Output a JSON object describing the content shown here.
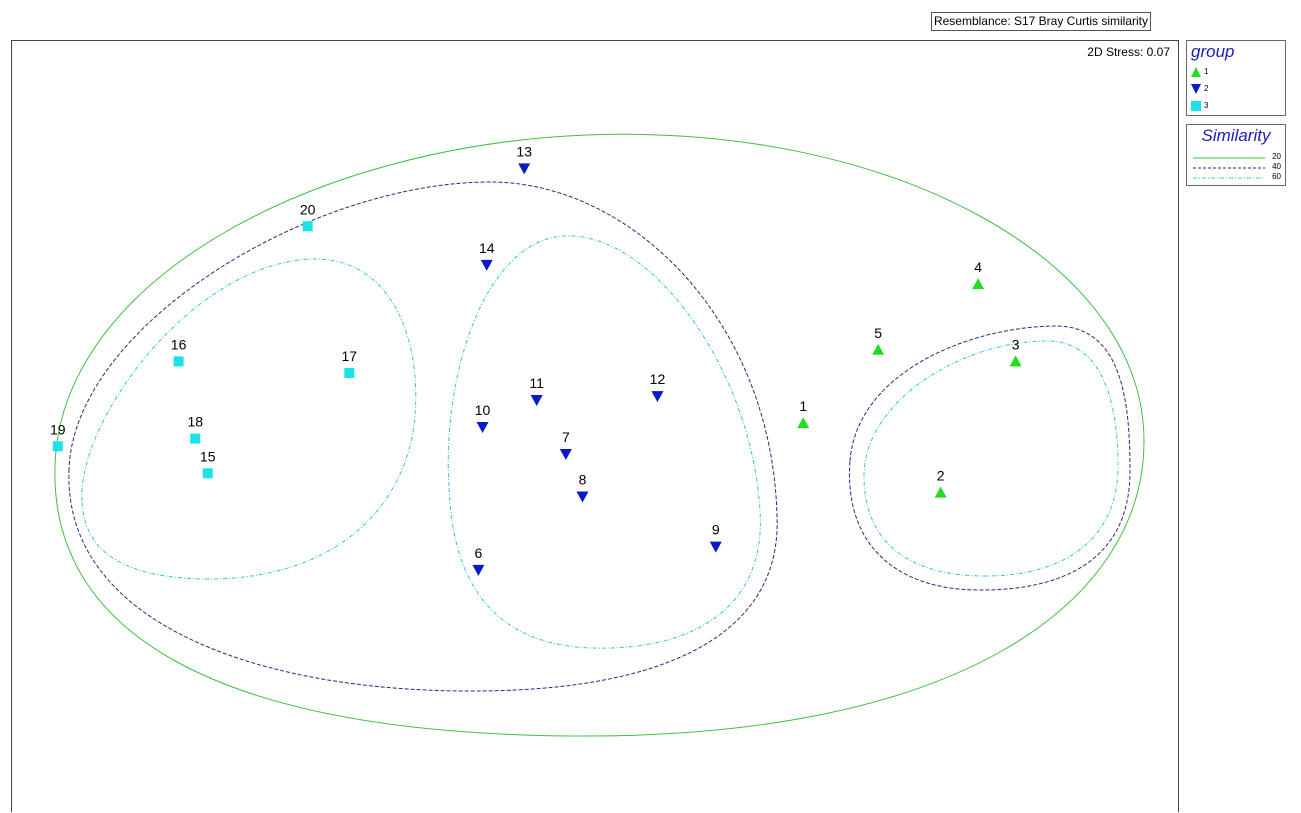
{
  "resemblance_label": "Resemblance: S17 Bray Curtis similarity",
  "stress_label": "2D Stress: 0.07",
  "colors": {
    "group1": "#22dd22",
    "group2": "#0a1ac8",
    "group3": "#19e3e8",
    "sim20": "#40c040",
    "sim40": "#2a2a80",
    "sim60": "#30c8d0"
  },
  "legend": {
    "group_title": "group",
    "groups": [
      {
        "label": "1",
        "symbol": "triangle-up-icon"
      },
      {
        "label": "2",
        "symbol": "triangle-down-icon"
      },
      {
        "label": "3",
        "symbol": "square-icon"
      }
    ],
    "similarity_title": "Similarity",
    "similarity": [
      {
        "label": "20",
        "style": "solid"
      },
      {
        "label": "40",
        "style": "dashed"
      },
      {
        "label": "60",
        "style": "dash-dot"
      }
    ]
  },
  "chart_data": {
    "type": "scatter",
    "title": "",
    "xlabel": "",
    "ylabel": "",
    "grid": false,
    "legend_position": "right",
    "xlim": [
      -1.5,
      1.3
    ],
    "ylim": [
      -1.1,
      0.9
    ],
    "points": [
      {
        "label": "1",
        "group": "1",
        "x": 0.4,
        "y": -0.09
      },
      {
        "label": "2",
        "group": "1",
        "x": 0.73,
        "y": -0.27
      },
      {
        "label": "3",
        "group": "1",
        "x": 0.91,
        "y": 0.07
      },
      {
        "label": "4",
        "group": "1",
        "x": 0.82,
        "y": 0.27
      },
      {
        "label": "5",
        "group": "1",
        "x": 0.58,
        "y": 0.1
      },
      {
        "label": "6",
        "group": "2",
        "x": -0.38,
        "y": -0.47
      },
      {
        "label": "7",
        "group": "2",
        "x": -0.17,
        "y": -0.17
      },
      {
        "label": "8",
        "group": "2",
        "x": -0.13,
        "y": -0.28
      },
      {
        "label": "9",
        "group": "2",
        "x": 0.19,
        "y": -0.41
      },
      {
        "label": "10",
        "group": "2",
        "x": -0.37,
        "y": -0.1
      },
      {
        "label": "11",
        "group": "2",
        "x": -0.24,
        "y": -0.03
      },
      {
        "label": "12",
        "group": "2",
        "x": 0.05,
        "y": -0.02
      },
      {
        "label": "13",
        "group": "2",
        "x": -0.27,
        "y": 0.57
      },
      {
        "label": "14",
        "group": "2",
        "x": -0.36,
        "y": 0.32
      },
      {
        "label": "15",
        "group": "3",
        "x": -1.03,
        "y": -0.22
      },
      {
        "label": "16",
        "group": "3",
        "x": -1.1,
        "y": 0.07
      },
      {
        "label": "17",
        "group": "3",
        "x": -0.69,
        "y": 0.04
      },
      {
        "label": "18",
        "group": "3",
        "x": -1.06,
        "y": -0.13
      },
      {
        "label": "19",
        "group": "3",
        "x": -1.39,
        "y": -0.15
      },
      {
        "label": "20",
        "group": "3",
        "x": -0.79,
        "y": 0.42
      }
    ]
  }
}
